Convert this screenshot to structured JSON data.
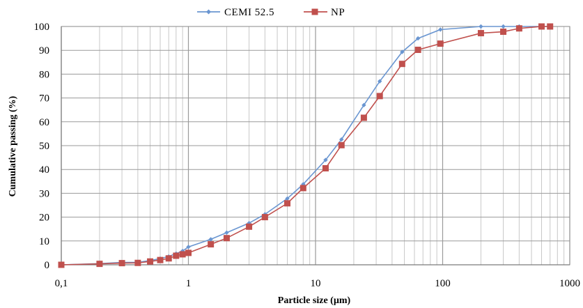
{
  "chart_data": {
    "type": "line",
    "xscale": "log",
    "xlim": [
      0.1,
      1000
    ],
    "ylim": [
      0,
      100
    ],
    "xticks": [
      "0,1",
      "1",
      "10",
      "100",
      "1000"
    ],
    "yticks": [
      "0",
      "10",
      "20",
      "30",
      "40",
      "50",
      "60",
      "70",
      "80",
      "90",
      "100"
    ],
    "xlabel": "Particle size (µm)",
    "ylabel": "Cumulative passing (%)",
    "grid": true,
    "legend_position": "top-center",
    "series": [
      {
        "name": "CEMI 52.5",
        "color": "#6a96d1",
        "marker": "diamond",
        "x": [
          0.1,
          0.2,
          0.3,
          0.4,
          0.5,
          0.6,
          0.7,
          0.8,
          0.9,
          1,
          1.5,
          2,
          3,
          4,
          6,
          8,
          12,
          16,
          24,
          32,
          48,
          64,
          96,
          200,
          300,
          400,
          600,
          700
        ],
        "y": [
          0,
          0.5,
          1,
          1,
          1.8,
          2.6,
          3.5,
          4.7,
          5.8,
          7.5,
          10.7,
          13.5,
          17.5,
          21.2,
          27.8,
          33.8,
          44,
          52.6,
          67,
          77,
          89.3,
          95,
          98.7,
          100,
          100,
          100,
          100,
          100
        ]
      },
      {
        "name": "NP",
        "color": "#c0504d",
        "marker": "square",
        "x": [
          0.1,
          0.2,
          0.3,
          0.4,
          0.5,
          0.6,
          0.7,
          0.8,
          0.9,
          1,
          1.5,
          2,
          3,
          4,
          6,
          8,
          12,
          16,
          24,
          32,
          48,
          64,
          96,
          200,
          300,
          400,
          600,
          700
        ],
        "y": [
          0,
          0.4,
          0.7,
          0.8,
          1.4,
          2,
          2.7,
          3.8,
          4.4,
          5,
          8.6,
          11.2,
          16,
          20,
          25.8,
          32.2,
          40.5,
          50.2,
          61.7,
          70.8,
          84.3,
          90.2,
          92.8,
          97.2,
          97.8,
          99.2,
          100,
          100
        ]
      }
    ]
  }
}
